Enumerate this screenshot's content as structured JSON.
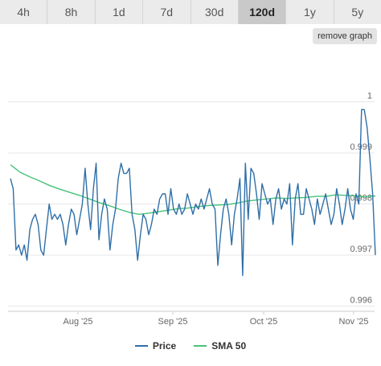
{
  "tabs": [
    {
      "label": "4h",
      "active": false
    },
    {
      "label": "8h",
      "active": false
    },
    {
      "label": "1d",
      "active": false
    },
    {
      "label": "7d",
      "active": false
    },
    {
      "label": "30d",
      "active": false
    },
    {
      "label": "120d",
      "active": true
    },
    {
      "label": "1y",
      "active": false
    },
    {
      "label": "5y",
      "active": false
    }
  ],
  "remove_graph_label": "remove graph",
  "legend": {
    "price_label": "Price",
    "sma_label": "SMA 50"
  },
  "colors": {
    "price": "#2f6fa8",
    "sma": "#45c37a",
    "grid": "#e6e6e6"
  },
  "chart_data": {
    "type": "line",
    "x_ticks": [
      "Aug '25",
      "Sep '25",
      "Oct '25",
      "Nov '25"
    ],
    "y_ticks": [
      0.996,
      0.997,
      0.998,
      0.999,
      1
    ],
    "ylim": [
      0.9959,
      1.00105
    ],
    "series": [
      {
        "name": "Price",
        "values": [
          0.9985,
          0.9983,
          0.9971,
          0.9972,
          0.997,
          0.9972,
          0.9969,
          0.9975,
          0.9977,
          0.9978,
          0.9976,
          0.9971,
          0.997,
          0.9975,
          0.998,
          0.9977,
          0.9978,
          0.9977,
          0.9978,
          0.9976,
          0.9972,
          0.9976,
          0.9979,
          0.9978,
          0.9974,
          0.9977,
          0.998,
          0.9987,
          0.998,
          0.9975,
          0.9983,
          0.9988,
          0.9973,
          0.9978,
          0.9981,
          0.9979,
          0.9971,
          0.9976,
          0.9979,
          0.9985,
          0.9988,
          0.9986,
          0.9986,
          0.9987,
          0.9978,
          0.9975,
          0.9969,
          0.9974,
          0.9978,
          0.9977,
          0.9974,
          0.9976,
          0.9979,
          0.9978,
          0.9981,
          0.9982,
          0.9982,
          0.9978,
          0.9983,
          0.9979,
          0.9978,
          0.998,
          0.9978,
          0.9979,
          0.9982,
          0.998,
          0.9978,
          0.998,
          0.9979,
          0.9981,
          0.9979,
          0.9981,
          0.9983,
          0.998,
          0.9979,
          0.9968,
          0.9974,
          0.9979,
          0.9981,
          0.9978,
          0.9972,
          0.9978,
          0.9981,
          0.9985,
          0.9966,
          0.9988,
          0.9977,
          0.9987,
          0.9986,
          0.9982,
          0.9977,
          0.9984,
          0.9982,
          0.998,
          0.9981,
          0.9976,
          0.9981,
          0.9983,
          0.9979,
          0.9981,
          0.998,
          0.9984,
          0.9972,
          0.9981,
          0.9984,
          0.9978,
          0.9978,
          0.9983,
          0.9981,
          0.9979,
          0.9976,
          0.9981,
          0.9978,
          0.998,
          0.9982,
          0.9979,
          0.9976,
          0.9978,
          0.9983,
          0.998,
          0.9976,
          0.9979,
          0.9983,
          0.9979,
          0.9977,
          0.9982,
          0.998,
          0.99985,
          0.99985,
          0.9995,
          0.9989,
          0.9982,
          0.997
        ]
      },
      {
        "name": "SMA 50",
        "values": [
          0.99877,
          0.99862,
          0.99853,
          0.99845,
          0.99836,
          0.99829,
          0.99823,
          0.99817,
          0.9981,
          0.99803,
          0.99797,
          0.9979,
          0.99784,
          0.9978,
          0.99782,
          0.99785,
          0.99788,
          0.99791,
          0.99792,
          0.99795,
          0.99797,
          0.99798,
          0.99799,
          0.99802,
          0.99806,
          0.99808,
          0.9981,
          0.99812,
          0.99811,
          0.99812,
          0.99813,
          0.99815,
          0.99815,
          0.99818,
          0.99817,
          0.99816,
          0.99814,
          0.99816
        ]
      }
    ]
  }
}
